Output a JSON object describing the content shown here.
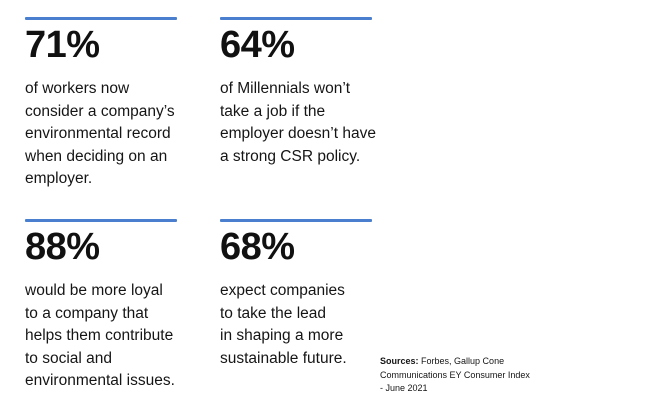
{
  "theme": {
    "background_color": "#ffffff",
    "accent_color": "#4a7fd0",
    "text_color": "#111111"
  },
  "stats": [
    {
      "value": "71%",
      "description": "of workers now\nconsider a company’s\nenvironmental record\nwhen deciding on an\nemployer."
    },
    {
      "value": "64%",
      "description": "of Millennials won’t\ntake a job if the\nemployer doesn’t have\na strong CSR policy."
    },
    {
      "value": "88%",
      "description": "would be more loyal\nto a company that\nhelps them contribute\nto social and\nenvironmental issues."
    },
    {
      "value": "68%",
      "description": "expect companies\nto take the lead\nin shaping a more\nsustainable future."
    }
  ],
  "sources": {
    "label": "Sources:",
    "line1": "Forbes, Gallup Cone",
    "line2": "Communications EY Consumer Index",
    "line3": "- June 2021"
  }
}
